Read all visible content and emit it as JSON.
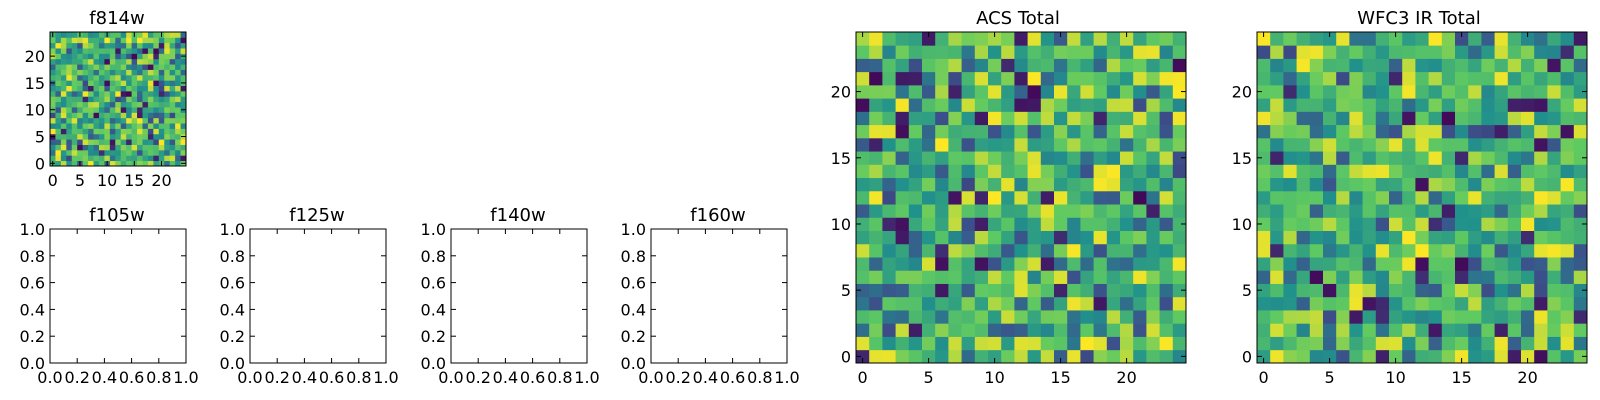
{
  "figure": {
    "background": "#ffffff",
    "colormap": "viridis",
    "colormap_stops": [
      "#440154",
      "#3b528b",
      "#21918c",
      "#5ec962",
      "#fde725"
    ]
  },
  "chart_data": [
    {
      "type": "heatmap",
      "title": "f814w",
      "xlabel": "",
      "ylabel": "",
      "xlim": [
        -0.5,
        24.5
      ],
      "ylim": [
        -0.5,
        24.5
      ],
      "xticks": [
        0,
        5,
        10,
        15,
        20
      ],
      "yticks": [
        0,
        5,
        10,
        15,
        20
      ],
      "xtick_labels": [
        "0",
        "5",
        "10",
        "15",
        "20"
      ],
      "ytick_labels": [
        "0",
        "5",
        "10",
        "15",
        "20"
      ],
      "grid": false,
      "rows": 25,
      "cols": 25,
      "value_range": [
        0,
        1
      ],
      "seed": 814,
      "values": "random pixel values on a 25×25 grid, mostly mid-to-high (green/yellow) with scattered low (blue/purple) pixels"
    },
    {
      "type": "scatter",
      "title": "f105w",
      "xlabel": "",
      "ylabel": "",
      "xlim": [
        0,
        1
      ],
      "ylim": [
        0,
        1
      ],
      "xtick_labels": [
        "0.0",
        "0.2",
        "0.4",
        "0.6",
        "0.8",
        "1.0"
      ],
      "ytick_labels": [
        "0.0",
        "0.2",
        "0.4",
        "0.6",
        "0.8",
        "1.0"
      ],
      "grid": false,
      "series": []
    },
    {
      "type": "scatter",
      "title": "f125w",
      "xlabel": "",
      "ylabel": "",
      "xlim": [
        0,
        1
      ],
      "ylim": [
        0,
        1
      ],
      "xtick_labels": [
        "0.0",
        "0.2",
        "0.4",
        "0.6",
        "0.8",
        "1.0"
      ],
      "ytick_labels": [
        "0.0",
        "0.2",
        "0.4",
        "0.6",
        "0.8",
        "1.0"
      ],
      "grid": false,
      "series": []
    },
    {
      "type": "scatter",
      "title": "f140w",
      "xlabel": "",
      "ylabel": "",
      "xlim": [
        0,
        1
      ],
      "ylim": [
        0,
        1
      ],
      "xtick_labels": [
        "0.0",
        "0.2",
        "0.4",
        "0.6",
        "0.8",
        "1.0"
      ],
      "ytick_labels": [
        "0.0",
        "0.2",
        "0.4",
        "0.6",
        "0.8",
        "1.0"
      ],
      "grid": false,
      "series": []
    },
    {
      "type": "scatter",
      "title": "f160w",
      "xlabel": "",
      "ylabel": "",
      "xlim": [
        0,
        1
      ],
      "ylim": [
        0,
        1
      ],
      "xtick_labels": [
        "0.0",
        "0.2",
        "0.4",
        "0.6",
        "0.8",
        "1.0"
      ],
      "ytick_labels": [
        "0.0",
        "0.2",
        "0.4",
        "0.6",
        "0.8",
        "1.0"
      ],
      "grid": false,
      "series": []
    },
    {
      "type": "heatmap",
      "title": "ACS Total",
      "xlabel": "",
      "ylabel": "",
      "xlim": [
        -0.5,
        24.5
      ],
      "ylim": [
        -0.5,
        24.5
      ],
      "xticks": [
        0,
        5,
        10,
        15,
        20
      ],
      "yticks": [
        0,
        5,
        10,
        15,
        20
      ],
      "xtick_labels": [
        "0",
        "5",
        "10",
        "15",
        "20"
      ],
      "ytick_labels": [
        "0",
        "5",
        "10",
        "15",
        "20"
      ],
      "grid": false,
      "rows": 25,
      "cols": 25,
      "value_range": [
        0,
        1
      ],
      "seed": 2001,
      "values": "random pixel values on a 25×25 grid, mostly green/yellow with scattered dark purple and blue pixels"
    },
    {
      "type": "heatmap",
      "title": "WFC3 IR Total",
      "xlabel": "",
      "ylabel": "",
      "xlim": [
        -0.5,
        24.5
      ],
      "ylim": [
        -0.5,
        24.5
      ],
      "xticks": [
        0,
        5,
        10,
        15,
        20
      ],
      "yticks": [
        0,
        5,
        10,
        15,
        20
      ],
      "xtick_labels": [
        "0",
        "5",
        "10",
        "15",
        "20"
      ],
      "ytick_labels": [
        "0",
        "5",
        "10",
        "15",
        "20"
      ],
      "grid": false,
      "rows": 25,
      "cols": 25,
      "value_range": [
        0,
        1
      ],
      "seed": 3003,
      "values": "random pixel values on a 25×25 grid, mostly teal/green with scattered yellow and dark purple pixels"
    }
  ]
}
